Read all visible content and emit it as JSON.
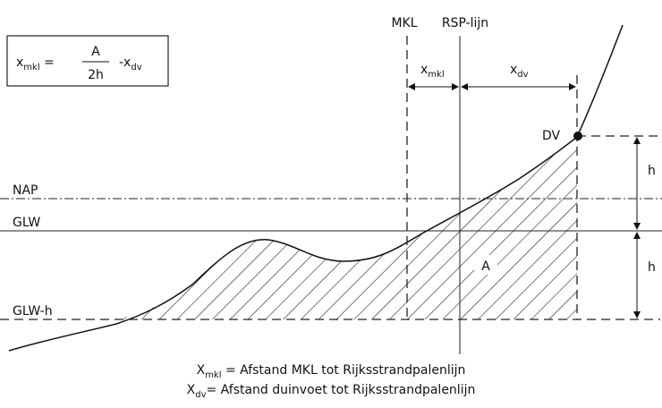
{
  "formula": {
    "lhs": "x",
    "lhs_sub": "mkl",
    "eq": " =",
    "numerator": "A",
    "denominator": "2h",
    "minus": "-x",
    "minus_sub": "dv"
  },
  "labels": {
    "mkl": "MKL",
    "rsp": "RSP-lijn",
    "x_mkl": "x",
    "x_mkl_sub": "mkl",
    "x_dv": "x",
    "x_dv_sub": "dv",
    "dv": "DV",
    "h_top": "h",
    "h_bottom": "h",
    "nap": "NAP",
    "glw": "GLW",
    "glw_h": "GLW-h",
    "area": "A"
  },
  "caption": [
    {
      "main": "X",
      "sub": "mkl",
      "text": " = Afstand MKL tot Rijksstrandpalenlijn"
    },
    {
      "main": "X",
      "sub": "dv",
      "text": "= Afstand duinvoet tot Rijksstrandpalenlijn"
    }
  ]
}
